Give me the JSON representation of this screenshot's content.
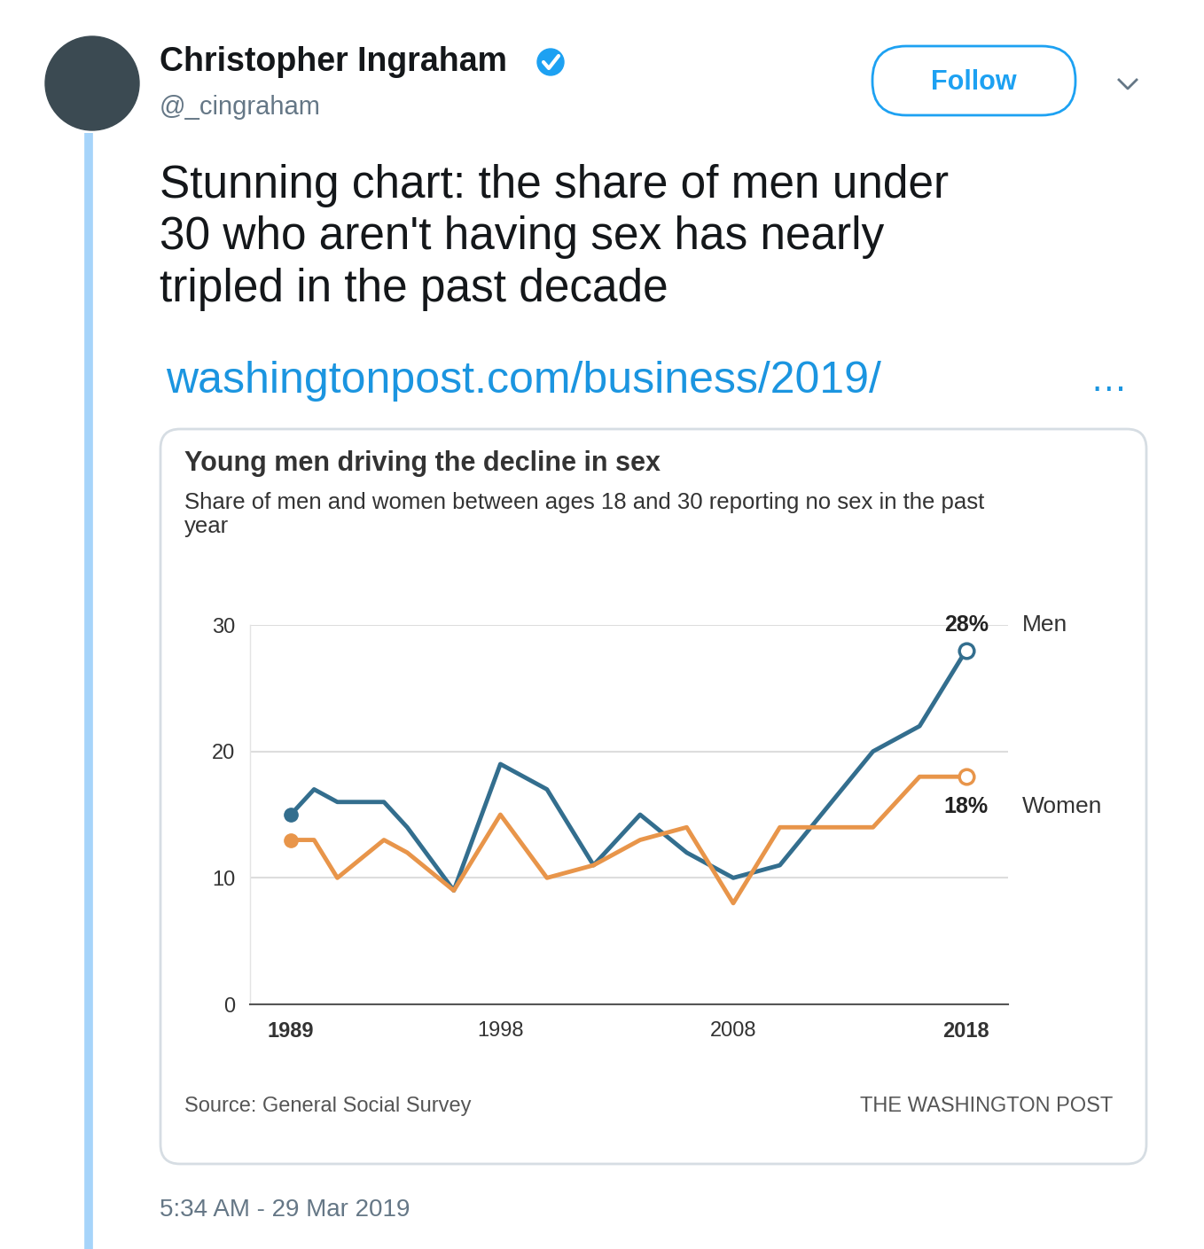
{
  "tweet": {
    "name": "Christopher Ingraham",
    "handle": "@_cingraham",
    "button": "Follow",
    "text": "Stunning chart: the share of men under 30 who aren't having sex has nearly tripled in the past decade",
    "link": "washingtonpost.com/business/2019/",
    "link_more": "…",
    "timestamp": "5:34 AM - 29 Mar 2019"
  },
  "chart_data": {
    "type": "line",
    "title": "Young men driving the decline in sex",
    "subtitle": "Share of men and women between ages 18 and 30 reporting no sex in the past year",
    "source": "Source: General Social Survey",
    "credit": "THE WASHINGTON POST",
    "x": [
      1989,
      1990,
      1991,
      1993,
      1994,
      1996,
      1998,
      2000,
      2002,
      2004,
      2006,
      2008,
      2010,
      2012,
      2014,
      2016,
      2018
    ],
    "xlim": [
      1987.25,
      2019.8
    ],
    "xticks": [
      1989,
      1998,
      2008,
      2018
    ],
    "ylim": [
      0,
      30
    ],
    "yticks": [
      0,
      10,
      20,
      30
    ],
    "grid": true,
    "data_labels": true,
    "series": [
      {
        "name": "Men",
        "color": "#336e8e",
        "values": [
          15,
          17,
          16,
          16,
          14,
          9,
          19,
          17,
          11,
          15,
          12,
          10,
          11,
          15.5,
          20,
          22,
          28
        ],
        "value_labels": [
          null,
          null,
          null,
          null,
          null,
          null,
          null,
          null,
          null,
          null,
          null,
          null,
          null,
          null,
          null,
          null,
          "28%"
        ]
      },
      {
        "name": "Women",
        "color": "#e8954a",
        "values": [
          13,
          13,
          10,
          13,
          12,
          9,
          15,
          10,
          11,
          13,
          14,
          8,
          14,
          14,
          14,
          18,
          18
        ],
        "value_labels": [
          null,
          null,
          null,
          null,
          null,
          null,
          null,
          null,
          null,
          null,
          null,
          null,
          null,
          null,
          null,
          null,
          "18%"
        ]
      }
    ]
  }
}
